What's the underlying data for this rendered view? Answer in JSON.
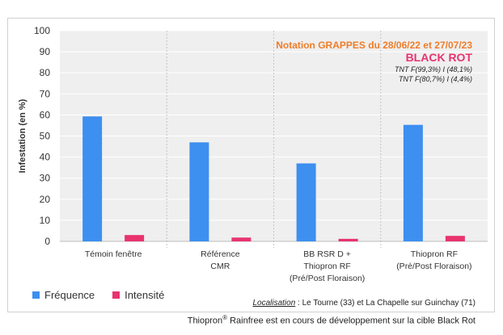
{
  "chart_data": {
    "type": "bar",
    "ylabel": "Infestation (en %)",
    "ylim": [
      0,
      100
    ],
    "yticks": [
      0,
      10,
      20,
      30,
      40,
      50,
      60,
      70,
      80,
      90,
      100
    ],
    "grid": true,
    "categories": [
      [
        "Témoin fenêtre"
      ],
      [
        "Référence",
        "CMR"
      ],
      [
        "BB RSR D +",
        "Thiopron RF",
        "(Pré/Post Floraison)"
      ],
      [
        "Thiopron RF",
        "(Pré/Post Floraison)"
      ]
    ],
    "series": [
      {
        "name": "Fréquence",
        "color": "#3d8ff0",
        "values": [
          59.3,
          47,
          37,
          55.3
        ]
      },
      {
        "name": "Intensité",
        "color": "#e8336e",
        "values": [
          3,
          1.8,
          1.2,
          2.6
        ]
      }
    ],
    "legend_position": "bottom-left"
  },
  "annotations": {
    "notation": "Notation GRAPPES du 28/06/22 et 27/07/23",
    "target": "BLACK ROT",
    "tnt_line1": "TNT F(99,3%) I (48,1%)",
    "tnt_line2": "TNT F(80,7%) I (4,4%)"
  },
  "location": {
    "label": "Localisation",
    "text": " : Le Tourne (33) et La Chapelle sur Guinchay (71)"
  },
  "footnote": {
    "brand": "Thiopron",
    "mark": "®",
    "text": " Rainfree est en cours de développement sur la cible Black Rot"
  }
}
